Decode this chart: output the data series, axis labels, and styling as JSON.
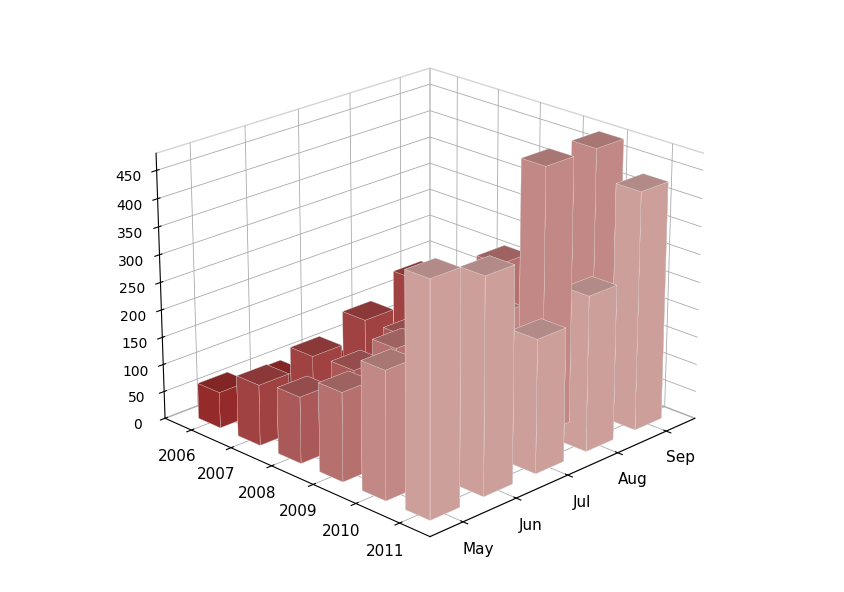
{
  "months": [
    "May",
    "Jun",
    "Jul",
    "Aug",
    "Sep"
  ],
  "years": [
    "2006",
    "2007",
    "2008",
    "2009",
    "2010",
    "2011"
  ],
  "values": {
    "2006": [
      65,
      50,
      40,
      60,
      50
    ],
    "2007": [
      110,
      125,
      155,
      195,
      105
    ],
    "2008": [
      120,
      130,
      155,
      200,
      115
    ],
    "2009": [
      160,
      200,
      210,
      280,
      320
    ],
    "2010": [
      230,
      240,
      250,
      480,
      480
    ],
    "2011": [
      415,
      385,
      240,
      280,
      430
    ]
  },
  "color_front": "#a83030",
  "color_back": "#e8b4b0",
  "yticks": [
    0,
    50,
    100,
    150,
    200,
    250,
    300,
    350,
    400,
    450
  ],
  "background_color": "#ffffff",
  "elev": 22,
  "azim": 225
}
